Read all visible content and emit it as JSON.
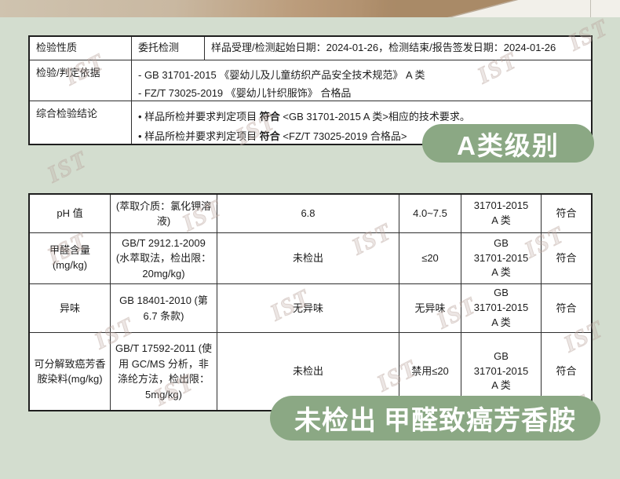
{
  "watermark_text": "IST",
  "colors": {
    "accent_green": "#8ba884",
    "page_background": "#d3ddcf"
  },
  "badge_a": "A类级别",
  "bottom_pill": {
    "highlight": "未检出",
    "rest": "甲醛致癌芳香胺"
  },
  "info_table": {
    "nature_label": "检验性质",
    "nature_value": "委托检测",
    "dates": "样品受理/检测起始日期：2024-01-26，检测结束/报告签发日期：2024-01-26",
    "basis_label": "检验/判定依据",
    "basis_items": [
      "-  GB 31701-2015 《婴幼儿及儿童纺织产品安全技术规范》 A 类",
      "-  FZ/T 73025-2019 《婴幼儿针织服饰》 合格品"
    ],
    "conclusion_label": "综合检验结论",
    "conclusion_items": [
      {
        "bullet": "•",
        "pre": " 样品所检并要求判定项目 ",
        "verdict": "符合",
        "post": " <GB 31701-2015 A 类>相应的技术要求。"
      },
      {
        "bullet": "•",
        "pre": " 样品所检并要求判定项目 ",
        "verdict": "符合",
        "post": " <FZ/T 73025-2019 合格品>"
      }
    ]
  },
  "results_table": {
    "rows": [
      {
        "item": "pH 值",
        "method": "(萃取介质：氯化钾溶液)",
        "result": "6.8",
        "limit": "4.0~7.5",
        "standard_lines": [
          "31701-2015",
          "A 类"
        ],
        "conclusion": "符合"
      },
      {
        "item_lines": [
          "甲醛含量",
          "(mg/kg)"
        ],
        "method": "GB/T 2912.1-2009 (水萃取法，检出限：20mg/kg)",
        "result": "未检出",
        "limit": "≤20",
        "standard_lines": [
          "GB",
          "31701-2015",
          "A 类"
        ],
        "conclusion": "符合"
      },
      {
        "item": "异味",
        "method": "GB 18401-2010 (第 6.7 条款)",
        "result": "无异味",
        "limit": "无异味",
        "standard_lines": [
          "GB",
          "31701-2015",
          "A 类"
        ],
        "conclusion": "符合"
      },
      {
        "item": "可分解致癌芳香胺染料(mg/kg)",
        "method": "GB/T 17592-2011 (使用 GC/MS 分析，非涤纶方法，检出限：5mg/kg)",
        "result": "未检出",
        "limit": "禁用≤20",
        "standard_lines": [
          "GB",
          "31701-2015",
          "A 类"
        ],
        "conclusion": "符合"
      }
    ]
  }
}
